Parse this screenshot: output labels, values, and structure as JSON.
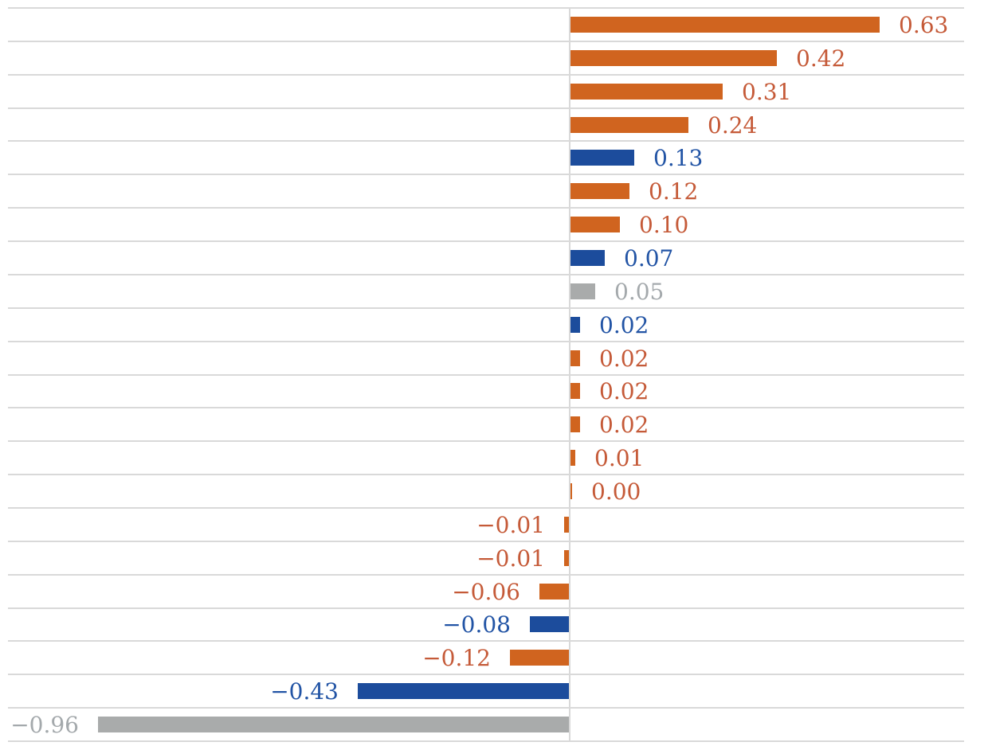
{
  "chart_data": {
    "type": "bar",
    "orientation": "horizontal",
    "title": "",
    "values": [
      0.63,
      0.42,
      0.31,
      0.24,
      0.13,
      0.12,
      0.1,
      0.07,
      0.05,
      0.02,
      0.02,
      0.02,
      0.02,
      0.01,
      0.0,
      -0.01,
      -0.01,
      -0.06,
      -0.08,
      -0.12,
      -0.43,
      -0.96
    ],
    "labels": [
      "0.63",
      "0.42",
      "0.31",
      "0.24",
      "0.13",
      "0.12",
      "0.10",
      "0.07",
      "0.05",
      "0.02",
      "0.02",
      "0.02",
      "0.02",
      "0.01",
      "0.00",
      "−0.01",
      "−0.01",
      "−0.06",
      "−0.08",
      "−0.12",
      "−0.43",
      "−0.96"
    ],
    "bar_color_keys": [
      "orange",
      "orange",
      "orange",
      "orange",
      "blue",
      "orange",
      "orange",
      "blue",
      "gray",
      "blue",
      "orange",
      "orange",
      "orange",
      "orange",
      "orange",
      "orange",
      "orange",
      "orange",
      "blue",
      "orange",
      "blue",
      "gray"
    ],
    "palette": {
      "orange": "#D0641F",
      "blue": "#1C4C9C",
      "gray": "#A9ABAB"
    },
    "label_palette": {
      "orange": "#C55A38",
      "blue": "#2254A5",
      "gray": "#A4A9AC"
    },
    "gridline_color": "#D9D9D9",
    "background_color": "#FFFFFF",
    "axis": {
      "zero_axis_line": true,
      "horizontal_gridlines": true,
      "xlim": [
        -1.15,
        0.8
      ],
      "tick_labels_visible": false,
      "category_labels_visible": false
    },
    "legend": {
      "visible": false
    }
  }
}
